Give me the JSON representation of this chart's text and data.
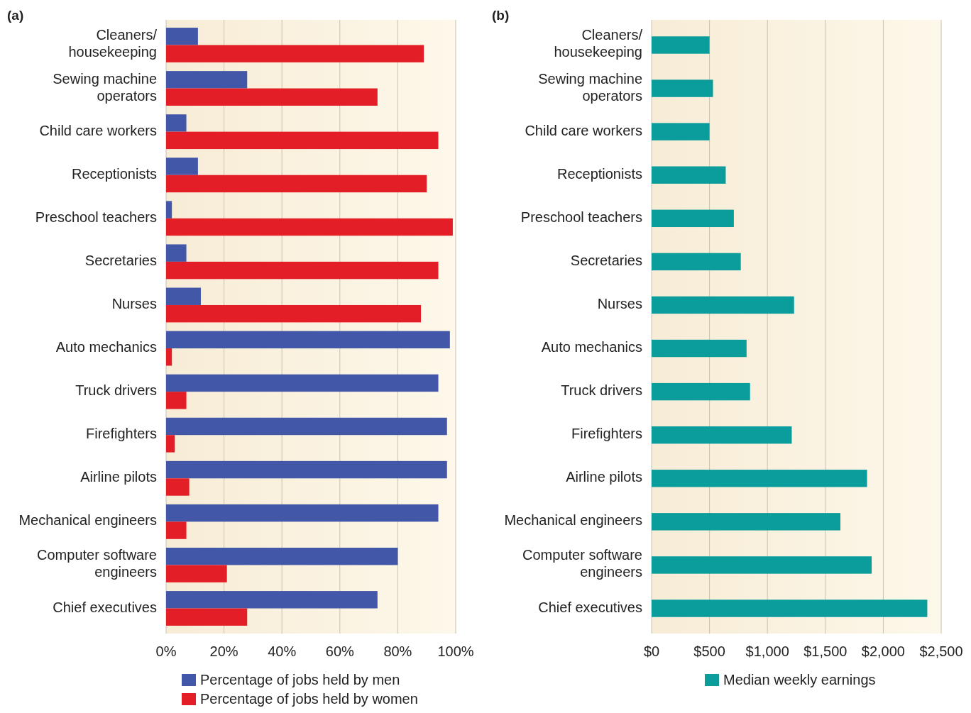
{
  "chart_data": [
    {
      "type": "bar",
      "orientation": "horizontal",
      "title": "(a)",
      "categories": [
        "Cleaners/ housekeeping",
        "Sewing machine operators",
        "Child care workers",
        "Receptionists",
        "Preschool teachers",
        "Secretaries",
        "Nurses",
        "Auto mechanics",
        "Truck drivers",
        "Firefighters",
        "Airline pilots",
        "Mechanical engineers",
        "Computer software engineers",
        "Chief executives"
      ],
      "series": [
        {
          "name": "Percentage of jobs held by men",
          "color": "#4357a8",
          "values": [
            11,
            28,
            7,
            11,
            2,
            7,
            12,
            98,
            94,
            97,
            97,
            94,
            80,
            73
          ]
        },
        {
          "name": "Percentage of jobs held by women",
          "color": "#e41e26",
          "values": [
            89,
            73,
            94,
            90,
            99,
            94,
            88,
            2,
            7,
            3,
            8,
            7,
            21,
            28
          ]
        }
      ],
      "xlim": [
        0,
        100
      ],
      "xticks": [
        {
          "value": 0,
          "label": "0%"
        },
        {
          "value": 20,
          "label": "20%"
        },
        {
          "value": 40,
          "label": "40%"
        },
        {
          "value": 60,
          "label": "60%"
        },
        {
          "value": 80,
          "label": "80%"
        },
        {
          "value": 100,
          "label": "100%"
        }
      ],
      "grid": "x",
      "legend": "bottom"
    },
    {
      "type": "bar",
      "orientation": "horizontal",
      "title": "(b)",
      "categories": [
        "Cleaners/ housekeeping",
        "Sewing machine operators",
        "Child care workers",
        "Receptionists",
        "Preschool teachers",
        "Secretaries",
        "Nurses",
        "Auto mechanics",
        "Truck drivers",
        "Firefighters",
        "Airline pilots",
        "Mechanical engineers",
        "Computer software engineers",
        "Chief executives"
      ],
      "series": [
        {
          "name": "Median weekly earnings",
          "color": "#0b9c9c",
          "values": [
            500,
            530,
            500,
            640,
            710,
            770,
            1230,
            820,
            850,
            1210,
            1860,
            1630,
            1900,
            2380
          ]
        }
      ],
      "xlim": [
        0,
        2500
      ],
      "xticks": [
        {
          "value": 0,
          "label": "$0"
        },
        {
          "value": 500,
          "label": "$500"
        },
        {
          "value": 1000,
          "label": "$1,000"
        },
        {
          "value": 1500,
          "label": "$1,500"
        },
        {
          "value": 2000,
          "label": "$2,000"
        },
        {
          "value": 2500,
          "label": "$2,500"
        }
      ],
      "grid": "x",
      "legend": "bottom"
    }
  ]
}
